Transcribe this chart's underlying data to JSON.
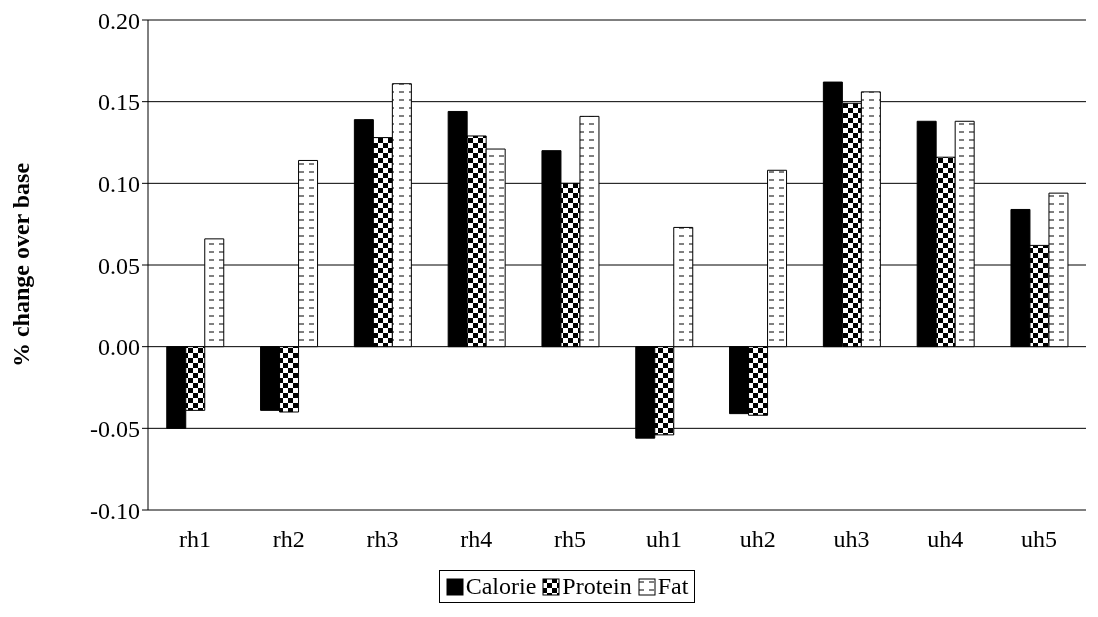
{
  "chart_data": {
    "type": "bar",
    "ylabel": "% change over base",
    "categories": [
      "rh1",
      "rh2",
      "rh3",
      "rh4",
      "rh5",
      "uh1",
      "uh2",
      "uh3",
      "uh4",
      "uh5"
    ],
    "series": [
      {
        "name": "Calorie",
        "color": "#000000",
        "values": [
          -0.05,
          -0.039,
          0.139,
          0.144,
          0.12,
          -0.056,
          -0.041,
          0.162,
          0.138,
          0.084
        ]
      },
      {
        "name": "Protein",
        "color": "#000000",
        "values": [
          -0.039,
          -0.04,
          0.128,
          0.129,
          0.1,
          -0.054,
          -0.042,
          0.149,
          0.116,
          0.062
        ]
      },
      {
        "name": "Fat",
        "color": "#000000",
        "values": [
          0.066,
          0.114,
          0.161,
          0.121,
          0.141,
          0.073,
          0.108,
          0.156,
          0.138,
          0.094
        ]
      }
    ],
    "ylim": [
      -0.1,
      0.2
    ],
    "yticks": [
      {
        "value": -0.1,
        "label": "-0.10"
      },
      {
        "value": -0.05,
        "label": "-0.05"
      },
      {
        "value": 0,
        "label": "0.00"
      },
      {
        "value": 0.05,
        "label": "0.05"
      },
      {
        "value": 0.1,
        "label": "0.10"
      },
      {
        "value": 0.15,
        "label": "0.15"
      },
      {
        "value": 0.2,
        "label": "0.20"
      }
    ],
    "grid": "y",
    "legend": "bottom"
  }
}
